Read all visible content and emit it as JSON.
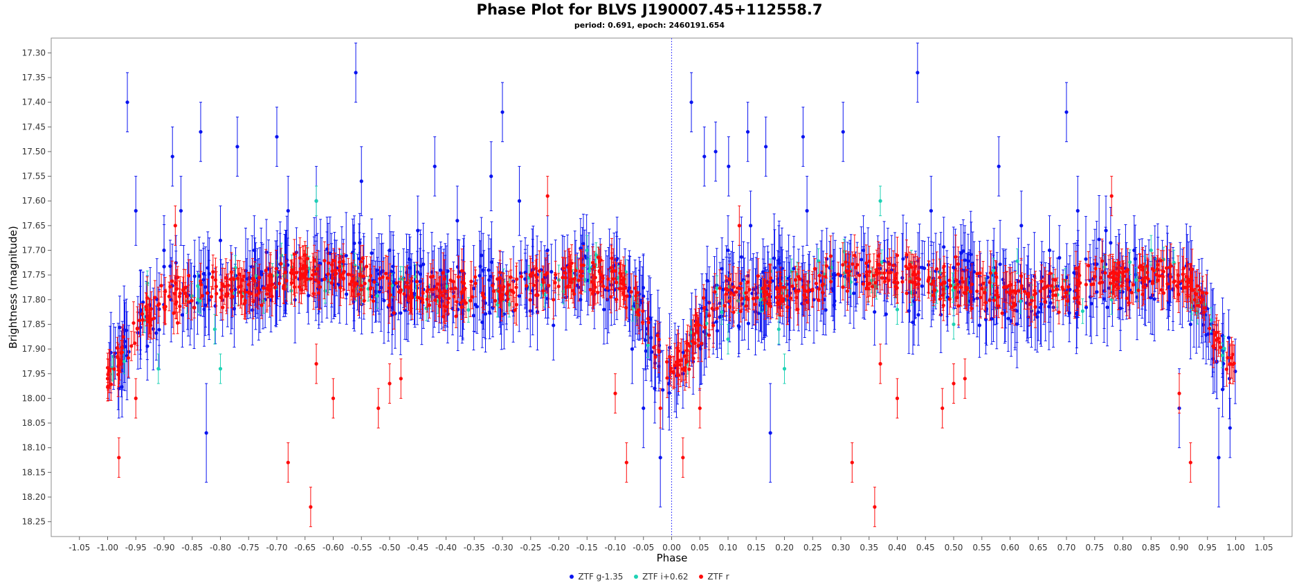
{
  "colors": {
    "g": "#0a14f0",
    "i": "#1ed2b4",
    "r": "#ff0a0a",
    "zero_line": "#4646ff",
    "frame": "#8c8c8c"
  },
  "chart_data": {
    "type": "scatter",
    "title": "Phase Plot for BLVS J190007.45+112558.7",
    "subtitle": "period: 0.691, epoch: 2460191.654",
    "xlabel": "Phase",
    "ylabel": "Brightness (magnitude)",
    "xlim": [
      -1.1,
      1.1
    ],
    "ylim": [
      18.28,
      17.27
    ],
    "y_inverted": true,
    "grid": false,
    "legend_position": "bottom",
    "x_ticks": [
      "-1.05",
      "-1.00",
      "-0.95",
      "-0.90",
      "-0.85",
      "-0.80",
      "-0.75",
      "-0.70",
      "-0.65",
      "-0.60",
      "-0.55",
      "-0.50",
      "-0.45",
      "-0.40",
      "-0.35",
      "-0.30",
      "-0.25",
      "-0.20",
      "-0.15",
      "-0.10",
      "-0.05",
      "0.00",
      "0.05",
      "0.10",
      "0.15",
      "0.20",
      "0.25",
      "0.30",
      "0.35",
      "0.40",
      "0.45",
      "0.50",
      "0.55",
      "0.60",
      "0.65",
      "0.70",
      "0.75",
      "0.80",
      "0.85",
      "0.90",
      "0.95",
      "1.00",
      "1.05"
    ],
    "y_ticks": [
      "17.30",
      "17.35",
      "17.40",
      "17.45",
      "17.50",
      "17.55",
      "17.60",
      "17.65",
      "17.70",
      "17.75",
      "17.80",
      "17.85",
      "17.90",
      "17.95",
      "18.00",
      "18.05",
      "18.10",
      "18.15",
      "18.20",
      "18.25"
    ],
    "series": [
      {
        "name": "ZTF g-1.35",
        "color": "#0a14f0",
        "points": [
          [
            0.035,
            17.4,
            0.06
          ],
          [
            0.058,
            17.51,
            0.06
          ],
          [
            0.078,
            17.5,
            0.06
          ],
          [
            0.101,
            17.53,
            0.06
          ],
          [
            0.167,
            17.49,
            0.06
          ],
          [
            0.233,
            17.47,
            0.06
          ],
          [
            0.304,
            17.46,
            0.06
          ],
          [
            0.436,
            17.34,
            0.06
          ],
          [
            0.58,
            17.53,
            0.06
          ],
          [
            0.7,
            17.42,
            0.06
          ],
          [
            0.135,
            17.46,
            0.06
          ],
          [
            -0.965,
            17.4,
            0.06
          ],
          [
            -0.885,
            17.51,
            0.06
          ],
          [
            -0.835,
            17.46,
            0.06
          ],
          [
            -0.77,
            17.49,
            0.06
          ],
          [
            -0.7,
            17.47,
            0.06
          ],
          [
            -0.56,
            17.34,
            0.06
          ],
          [
            -0.42,
            17.53,
            0.06
          ],
          [
            -0.3,
            17.42,
            0.06
          ],
          [
            -0.825,
            18.07,
            0.1
          ],
          [
            0.175,
            18.07,
            0.1
          ],
          [
            -0.02,
            18.12,
            0.1
          ],
          [
            0.97,
            18.12,
            0.1
          ],
          [
            0.99,
            18.06,
            0.06
          ],
          [
            -0.98,
            17.98,
            0.06
          ],
          [
            -0.05,
            18.02,
            0.08
          ],
          [
            0.9,
            18.02,
            0.08
          ],
          [
            -0.95,
            17.62,
            0.07
          ],
          [
            -0.9,
            17.7,
            0.07
          ],
          [
            -0.87,
            17.62,
            0.07
          ],
          [
            -0.8,
            17.68,
            0.07
          ],
          [
            -0.74,
            17.7,
            0.07
          ],
          [
            -0.68,
            17.62,
            0.07
          ],
          [
            -0.63,
            17.6,
            0.07
          ],
          [
            -0.55,
            17.56,
            0.07
          ],
          [
            -0.5,
            17.7,
            0.07
          ],
          [
            -0.45,
            17.66,
            0.07
          ],
          [
            -0.38,
            17.64,
            0.07
          ],
          [
            -0.32,
            17.55,
            0.07
          ],
          [
            -0.27,
            17.6,
            0.07
          ],
          [
            -0.22,
            17.7,
            0.07
          ],
          [
            -0.17,
            17.75,
            0.07
          ],
          [
            -0.12,
            17.82,
            0.07
          ],
          [
            -0.07,
            17.9,
            0.07
          ],
          [
            -0.03,
            17.98,
            0.07
          ],
          [
            0.02,
            17.95,
            0.07
          ],
          [
            0.06,
            17.85,
            0.07
          ],
          [
            0.1,
            17.7,
            0.07
          ],
          [
            0.14,
            17.65,
            0.07
          ],
          [
            0.19,
            17.72,
            0.07
          ],
          [
            0.24,
            17.62,
            0.07
          ],
          [
            0.29,
            17.75,
            0.07
          ],
          [
            0.34,
            17.7,
            0.07
          ],
          [
            0.39,
            17.74,
            0.07
          ],
          [
            0.46,
            17.62,
            0.07
          ],
          [
            0.52,
            17.72,
            0.07
          ],
          [
            0.57,
            17.75,
            0.07
          ],
          [
            0.62,
            17.65,
            0.07
          ],
          [
            0.67,
            17.7,
            0.07
          ],
          [
            0.72,
            17.62,
            0.07
          ],
          [
            0.77,
            17.66,
            0.07
          ],
          [
            0.82,
            17.7,
            0.07
          ],
          [
            0.87,
            17.75,
            0.07
          ],
          [
            0.92,
            17.85,
            0.07
          ],
          [
            0.96,
            17.92,
            0.07
          ]
        ]
      },
      {
        "name": "ZTF i+0.62",
        "color": "#1ed2b4",
        "points": [
          [
            -0.8,
            17.94,
            0.03
          ],
          [
            -0.81,
            17.86,
            0.03
          ],
          [
            -0.91,
            17.94,
            0.03
          ],
          [
            -0.63,
            17.6,
            0.03
          ],
          [
            0.19,
            17.86,
            0.03
          ],
          [
            0.2,
            17.94,
            0.03
          ],
          [
            0.37,
            17.6,
            0.03
          ],
          [
            -0.55,
            17.78,
            0.03
          ],
          [
            -0.3,
            17.8,
            0.03
          ],
          [
            0.4,
            17.82,
            0.03
          ],
          [
            0.6,
            17.78,
            0.03
          ],
          [
            0.78,
            17.8,
            0.03
          ],
          [
            -0.7,
            17.75,
            0.03
          ],
          [
            -0.2,
            17.76,
            0.03
          ],
          [
            0.1,
            17.88,
            0.03
          ],
          [
            0.85,
            17.7,
            0.03
          ],
          [
            -0.15,
            17.7,
            0.03
          ],
          [
            0.5,
            17.85,
            0.03
          ]
        ]
      },
      {
        "name": "ZTF r",
        "color": "#ff0a0a",
        "points": [
          [
            -0.98,
            18.12,
            0.04
          ],
          [
            -0.95,
            18.0,
            0.04
          ],
          [
            -0.68,
            18.13,
            0.04
          ],
          [
            -0.64,
            18.22,
            0.04
          ],
          [
            -0.63,
            17.93,
            0.04
          ],
          [
            -0.6,
            18.0,
            0.04
          ],
          [
            -0.52,
            18.02,
            0.04
          ],
          [
            -0.5,
            17.97,
            0.04
          ],
          [
            -0.48,
            17.96,
            0.04
          ],
          [
            -0.22,
            17.59,
            0.04
          ],
          [
            -0.08,
            18.13,
            0.04
          ],
          [
            -0.02,
            18.02,
            0.04
          ],
          [
            0.02,
            18.12,
            0.04
          ],
          [
            0.05,
            18.02,
            0.04
          ],
          [
            0.32,
            18.13,
            0.04
          ],
          [
            0.36,
            18.22,
            0.04
          ],
          [
            0.37,
            17.93,
            0.04
          ],
          [
            0.4,
            18.0,
            0.04
          ],
          [
            0.48,
            18.02,
            0.04
          ],
          [
            0.5,
            17.97,
            0.04
          ],
          [
            0.52,
            17.96,
            0.04
          ],
          [
            0.78,
            17.59,
            0.04
          ],
          [
            0.92,
            18.13,
            0.04
          ],
          [
            0.9,
            17.99,
            0.04
          ],
          [
            -0.88,
            17.65,
            0.04
          ],
          [
            0.12,
            17.65,
            0.04
          ],
          [
            -0.1,
            17.99,
            0.04
          ],
          [
            -1.0,
            17.96,
            0.04
          ],
          [
            0.99,
            17.93,
            0.04
          ]
        ]
      }
    ]
  },
  "legend": {
    "items": [
      {
        "label": "ZTF g-1.35"
      },
      {
        "label": "ZTF i+0.62"
      },
      {
        "label": "ZTF r"
      }
    ]
  }
}
